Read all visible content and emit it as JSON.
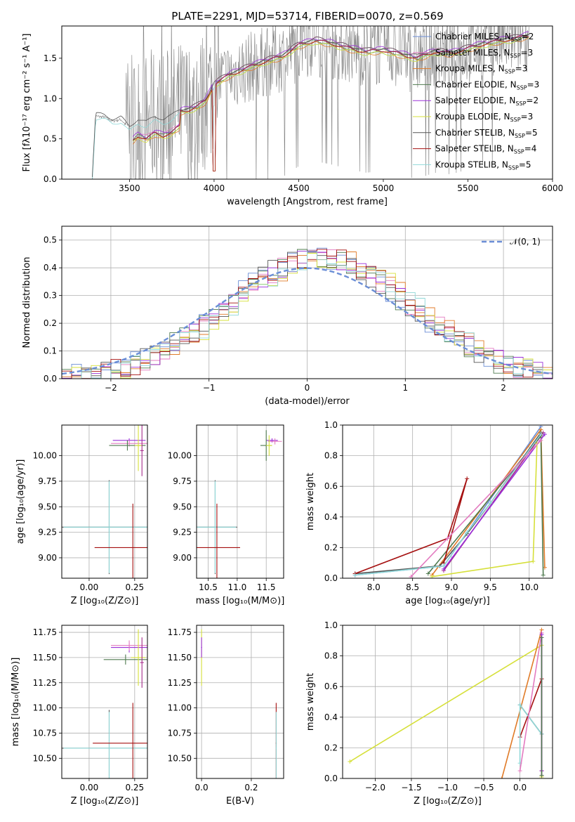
{
  "title": "PLATE=2291, MJD=53714, FIBERID=0070, z=0.569",
  "colors": {
    "chabrier_miles": "#6b8ed6",
    "salpeter_miles": "#a52a8a",
    "kroupa_miles": "#e07b28",
    "chabrier_elodie": "#4f7a4f",
    "salpeter_elodie": "#9b30d9",
    "kroupa_elodie": "#d6e03a",
    "chabrier_stelib": "#555555",
    "salpeter_stelib": "#a51010",
    "kroupa_stelib": "#8fd8d8",
    "salpeter_miles_alt": "#e37bc0"
  },
  "chart_data": [
    {
      "type": "line",
      "id": "spectrum",
      "xlabel": "wavelength [Angstrom, rest frame]",
      "ylabel": "Flux [fλ10⁻¹⁷ erg cm⁻² s⁻¹ A⁻¹]",
      "xlim": [
        3100,
        6000
      ],
      "ylim": [
        0,
        1.9
      ],
      "xticks": [
        "3500",
        "4000",
        "4500",
        "5000",
        "5500",
        "6000"
      ],
      "yticks": [
        "0.0",
        "0.5",
        "1.0",
        "1.5"
      ],
      "legend_position": "top-right",
      "legend": [
        {
          "label": "Chabrier MILES, N",
          "sub": "SSP",
          "suffix": "=2",
          "color_key": "chabrier_miles"
        },
        {
          "label": "Salpeter MILES, N",
          "sub": "SSP",
          "suffix": "=3",
          "color_key": "salpeter_miles_alt"
        },
        {
          "label": "Kroupa MILES, N",
          "sub": "SSP",
          "suffix": "=3",
          "color_key": "kroupa_miles"
        },
        {
          "label": "Chabrier ELODIE, N",
          "sub": "SSP",
          "suffix": "=3",
          "color_key": "chabrier_elodie"
        },
        {
          "label": "Salpeter ELODIE, N",
          "sub": "SSP",
          "suffix": "=2",
          "color_key": "salpeter_elodie"
        },
        {
          "label": "Kroupa ELODIE, N",
          "sub": "SSP",
          "suffix": "=3",
          "color_key": "kroupa_elodie"
        },
        {
          "label": "Chabrier STELIB, N",
          "sub": "SSP",
          "suffix": "=5",
          "color_key": "chabrier_stelib"
        },
        {
          "label": "Salpeter STELIB, N",
          "sub": "SSP",
          "suffix": "=4",
          "color_key": "salpeter_stelib"
        },
        {
          "label": "Kroupa STELIB, N",
          "sub": "SSP",
          "suffix": "=5",
          "color_key": "kroupa_stelib"
        }
      ],
      "data_range": [
        3130,
        5860
      ],
      "model_nodes": {
        "x": [
          3280,
          3300,
          3350,
          3400,
          3450,
          3500,
          3550,
          3600,
          3650,
          3700,
          3750,
          3800,
          3850,
          3900,
          3950,
          4000,
          4100,
          4200,
          4300,
          4400,
          4500,
          4600,
          4700,
          4800,
          4900,
          5000,
          5100,
          5200,
          5300,
          5400,
          5500,
          5600,
          5700,
          5800,
          5850
        ],
        "y": [
          0.0,
          0.78,
          0.77,
          0.72,
          0.74,
          0.62,
          0.72,
          0.68,
          0.75,
          0.72,
          0.76,
          0.84,
          0.86,
          0.9,
          0.97,
          1.18,
          1.3,
          1.38,
          1.46,
          1.52,
          1.66,
          1.72,
          1.68,
          1.62,
          1.58,
          1.6,
          1.55,
          1.5,
          1.58,
          1.56,
          1.62,
          1.68,
          1.72,
          1.75,
          1.78
        ]
      }
    },
    {
      "type": "histogram",
      "id": "residuals",
      "xlabel": "(data-model)/error",
      "ylabel": "Normed distribution",
      "xlim": [
        -2.5,
        2.5
      ],
      "ylim": [
        0,
        0.55
      ],
      "xticks": [
        "−2",
        "−1",
        "0",
        "1",
        "2"
      ],
      "yticks": [
        "0.0",
        "0.1",
        "0.2",
        "0.3",
        "0.4",
        "0.5"
      ],
      "legend_position": "top-right",
      "legend": [
        {
          "label": "𝒩(0, 1)",
          "color_key": "chabrier_miles",
          "dashed": true
        }
      ],
      "bin_width": 0.1,
      "bin_start": -2.5,
      "reference_curve": "normal(0,1)"
    },
    {
      "type": "scatter",
      "id": "age_vs_Z",
      "xlabel": "Z [log₁₀(Z/Z⊙)]",
      "ylabel": "age  [log₁₀(age/yr)]",
      "xlim": [
        -0.15,
        0.32
      ],
      "ylim": [
        8.8,
        10.3
      ],
      "xticks": [
        "0.00",
        "0.25"
      ],
      "yticks": [
        "9.00",
        "9.25",
        "9.50",
        "9.75",
        "10.00"
      ]
    },
    {
      "type": "scatter",
      "id": "age_vs_mass",
      "xlabel": "mass [log₁₀(M/M⊙)]",
      "ylabel": "",
      "xlim": [
        10.3,
        11.8
      ],
      "ylim": [
        8.8,
        10.3
      ],
      "xticks": [
        "10.5",
        "11.0",
        "11.5"
      ],
      "yticks": [
        "9.00",
        "9.25",
        "9.50",
        "9.75",
        "10.00"
      ]
    },
    {
      "type": "line",
      "id": "weight_vs_age",
      "xlabel": "age  [log₁₀(age/yr)]",
      "ylabel": "mass weight",
      "xlim": [
        7.6,
        10.3
      ],
      "ylim": [
        0,
        1.0
      ],
      "xticks": [
        "8.0",
        "8.5",
        "9.0",
        "9.5",
        "10.0"
      ],
      "yticks": [
        "0.0",
        "0.2",
        "0.4",
        "0.6",
        "0.8",
        "1.0"
      ]
    },
    {
      "type": "scatter",
      "id": "mass_vs_Z",
      "xlabel": "Z [log₁₀(Z/Z⊙)]",
      "ylabel": "mass [log₁₀(M/M⊙)]",
      "xlim": [
        -0.15,
        0.32
      ],
      "ylim": [
        10.3,
        11.82
      ],
      "xticks": [
        "0.00",
        "0.25"
      ],
      "yticks": [
        "10.50",
        "10.75",
        "11.00",
        "11.25",
        "11.50",
        "11.75"
      ]
    },
    {
      "type": "scatter",
      "id": "mass_vs_ebv",
      "xlabel": "E(B-V)",
      "ylabel": "",
      "xlim": [
        -0.02,
        0.33
      ],
      "ylim": [
        10.3,
        11.82
      ],
      "xticks": [
        "0.0",
        "0.2"
      ],
      "yticks": [
        "10.50",
        "10.75",
        "11.00",
        "11.25",
        "11.50",
        "11.75"
      ]
    },
    {
      "type": "line",
      "id": "weight_vs_Z",
      "xlabel": "Z [log₁₀(Z/Z⊙)]",
      "ylabel": "mass weight",
      "xlim": [
        -2.45,
        0.45
      ],
      "ylim": [
        0,
        1.0
      ],
      "xticks": [
        "−2.0",
        "−1.5",
        "−1.0",
        "−0.5",
        "0.0"
      ],
      "yticks": [
        "0.0",
        "0.2",
        "0.4",
        "0.6",
        "0.8",
        "1.0"
      ]
    }
  ]
}
